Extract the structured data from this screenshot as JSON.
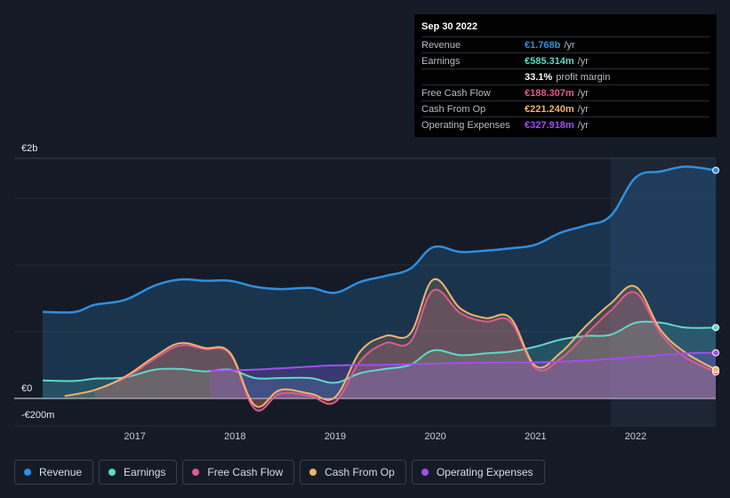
{
  "tooltip": {
    "date": "Sep 30 2022",
    "rows": [
      {
        "label": "Revenue",
        "value": "€1.768b",
        "unit": "/yr",
        "color": "#2e8fe0"
      },
      {
        "label": "Earnings",
        "value": "€585.314m",
        "unit": "/yr",
        "color": "#5fd9c8"
      },
      {
        "label": "",
        "value": "33.1%",
        "unit": "profit margin",
        "color": "#ffffff"
      },
      {
        "label": "Free Cash Flow",
        "value": "€188.307m",
        "unit": "/yr",
        "color": "#e05a8e"
      },
      {
        "label": "Cash From Op",
        "value": "€221.240m",
        "unit": "/yr",
        "color": "#f0b46a"
      },
      {
        "label": "Operating Expenses",
        "value": "€327.918m",
        "unit": "/yr",
        "color": "#a44df0"
      }
    ]
  },
  "legend": [
    {
      "label": "Revenue",
      "color": "#2e8fe0"
    },
    {
      "label": "Earnings",
      "color": "#5fd9c8"
    },
    {
      "label": "Free Cash Flow",
      "color": "#e05a8e"
    },
    {
      "label": "Cash From Op",
      "color": "#f0b46a"
    },
    {
      "label": "Operating Expenses",
      "color": "#a44df0"
    }
  ],
  "chart_data": {
    "type": "area",
    "title": "",
    "xlabel": "",
    "ylabel": "",
    "y_tick_labels": [
      "€2b",
      "€0",
      "-€200m"
    ],
    "ylim": [
      -200,
      2000
    ],
    "x_tick_labels": [
      "2017",
      "2018",
      "2019",
      "2020",
      "2021",
      "2022"
    ],
    "xlim": [
      2016.08,
      2022.8
    ],
    "highlight_start": 2021.75,
    "series": [
      {
        "name": "Revenue",
        "color": "#2e8fe0",
        "x": [
          2016.08,
          2016.4,
          2016.6,
          2016.9,
          2017.2,
          2017.45,
          2017.7,
          2017.95,
          2018.2,
          2018.45,
          2018.75,
          2019.0,
          2019.25,
          2019.5,
          2019.75,
          2019.98,
          2020.25,
          2020.5,
          2020.75,
          2021.0,
          2021.25,
          2021.5,
          2021.75,
          2022.0,
          2022.25,
          2022.5,
          2022.8
        ],
        "y": [
          720,
          720,
          780,
          820,
          940,
          990,
          980,
          980,
          930,
          910,
          920,
          880,
          970,
          1020,
          1080,
          1260,
          1220,
          1230,
          1250,
          1280,
          1380,
          1440,
          1520,
          1840,
          1890,
          1930,
          1900
        ]
      },
      {
        "name": "Earnings",
        "color": "#5fd9c8",
        "x": [
          2016.08,
          2016.4,
          2016.6,
          2016.9,
          2017.2,
          2017.45,
          2017.7,
          2017.95,
          2018.2,
          2018.45,
          2018.75,
          2019.0,
          2019.25,
          2019.5,
          2019.75,
          2019.98,
          2020.25,
          2020.5,
          2020.75,
          2021.0,
          2021.25,
          2021.5,
          2021.75,
          2022.0,
          2022.25,
          2022.5,
          2022.8
        ],
        "y": [
          150,
          145,
          165,
          175,
          240,
          245,
          225,
          240,
          170,
          170,
          170,
          130,
          210,
          245,
          280,
          400,
          360,
          375,
          390,
          430,
          490,
          520,
          530,
          630,
          630,
          590,
          590
        ]
      },
      {
        "name": "Free Cash Flow",
        "color": "#e05a8e",
        "x": [
          2016.6,
          2016.9,
          2017.2,
          2017.45,
          2017.7,
          2017.95,
          2018.2,
          2018.45,
          2018.75,
          2019.0,
          2019.25,
          2019.5,
          2019.75,
          2019.98,
          2020.25,
          2020.5,
          2020.75,
          2021.0,
          2021.25,
          2021.5,
          2021.75,
          2022.0,
          2022.25,
          2022.5,
          2022.8
        ],
        "y": [
          70,
          170,
          330,
          440,
          410,
          370,
          -90,
          40,
          20,
          -30,
          310,
          460,
          470,
          900,
          710,
          640,
          640,
          250,
          330,
          530,
          730,
          880,
          540,
          340,
          220
        ]
      },
      {
        "name": "Cash From Op",
        "color": "#f0b46a",
        "x": [
          2016.3,
          2016.6,
          2016.9,
          2017.2,
          2017.45,
          2017.7,
          2017.95,
          2018.2,
          2018.45,
          2018.75,
          2019.0,
          2019.25,
          2019.5,
          2019.75,
          2019.98,
          2020.25,
          2020.5,
          2020.75,
          2021.0,
          2021.25,
          2021.5,
          2021.75,
          2022.0,
          2022.25,
          2022.5,
          2022.8
        ],
        "y": [
          20,
          70,
          180,
          350,
          460,
          420,
          380,
          -60,
          70,
          40,
          10,
          390,
          520,
          540,
          990,
          750,
          670,
          670,
          270,
          380,
          600,
          790,
          930,
          570,
          380,
          240
        ]
      },
      {
        "name": "Operating Expenses",
        "color": "#a44df0",
        "x": [
          2017.75,
          2018.2,
          2018.75,
          2019.0,
          2019.5,
          2019.98,
          2020.25,
          2020.75,
          2021.0,
          2021.5,
          2022.0,
          2022.5,
          2022.8
        ],
        "y": [
          230,
          240,
          265,
          275,
          280,
          290,
          295,
          300,
          300,
          315,
          345,
          375,
          380
        ]
      }
    ]
  }
}
